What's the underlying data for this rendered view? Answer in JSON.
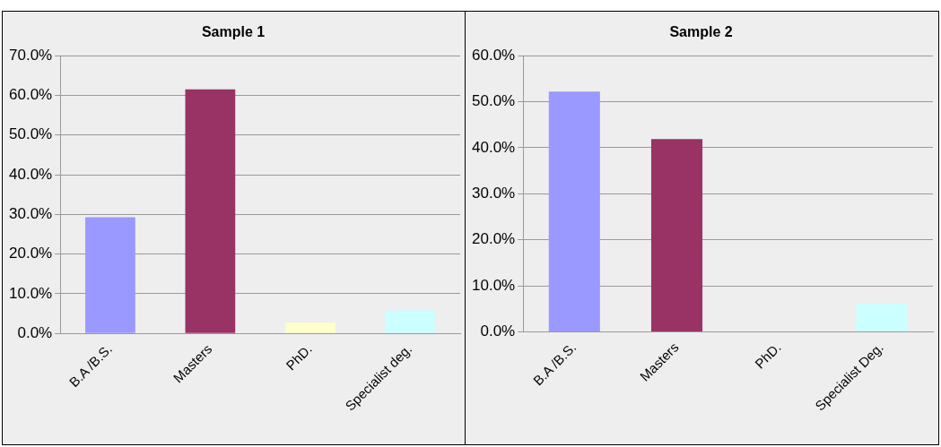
{
  "chart_data": [
    {
      "type": "bar",
      "title": "Sample 1",
      "categories": [
        "B.A /B.S.",
        "Masters",
        "PhD.",
        "Specialist deg."
      ],
      "values": [
        29.3,
        61.5,
        2.7,
        5.8
      ],
      "colors": [
        "#9999ff",
        "#993366",
        "#ffffcc",
        "#ccffff"
      ],
      "ylim": [
        0,
        70
      ],
      "yticks": [
        {
          "value": 0,
          "label": "0.0%"
        },
        {
          "value": 10,
          "label": "10.0%"
        },
        {
          "value": 20,
          "label": "20.0%"
        },
        {
          "value": 30,
          "label": "30.0%"
        },
        {
          "value": 40,
          "label": "40.0%"
        },
        {
          "value": 50,
          "label": "50.0%"
        },
        {
          "value": 60,
          "label": "60.0%"
        },
        {
          "value": 70,
          "label": "70.0%"
        }
      ],
      "grid": "y",
      "legend": false
    },
    {
      "type": "bar",
      "title": "Sample 2",
      "categories": [
        "B.A /B.S.",
        "Masters",
        "PhD.",
        "Specialist Deg."
      ],
      "values": [
        52.2,
        41.9,
        0,
        6.3
      ],
      "colors": [
        "#9999ff",
        "#993366",
        "#ffffcc",
        "#ccffff"
      ],
      "ylim": [
        0,
        60
      ],
      "yticks": [
        {
          "value": 0,
          "label": "0.0%"
        },
        {
          "value": 10,
          "label": "10.0%"
        },
        {
          "value": 20,
          "label": "20.0%"
        },
        {
          "value": 30,
          "label": "30.0%"
        },
        {
          "value": 40,
          "label": "40.0%"
        },
        {
          "value": 50,
          "label": "50.0%"
        },
        {
          "value": 60,
          "label": "60.0%"
        }
      ],
      "grid": "y",
      "legend": false
    }
  ]
}
